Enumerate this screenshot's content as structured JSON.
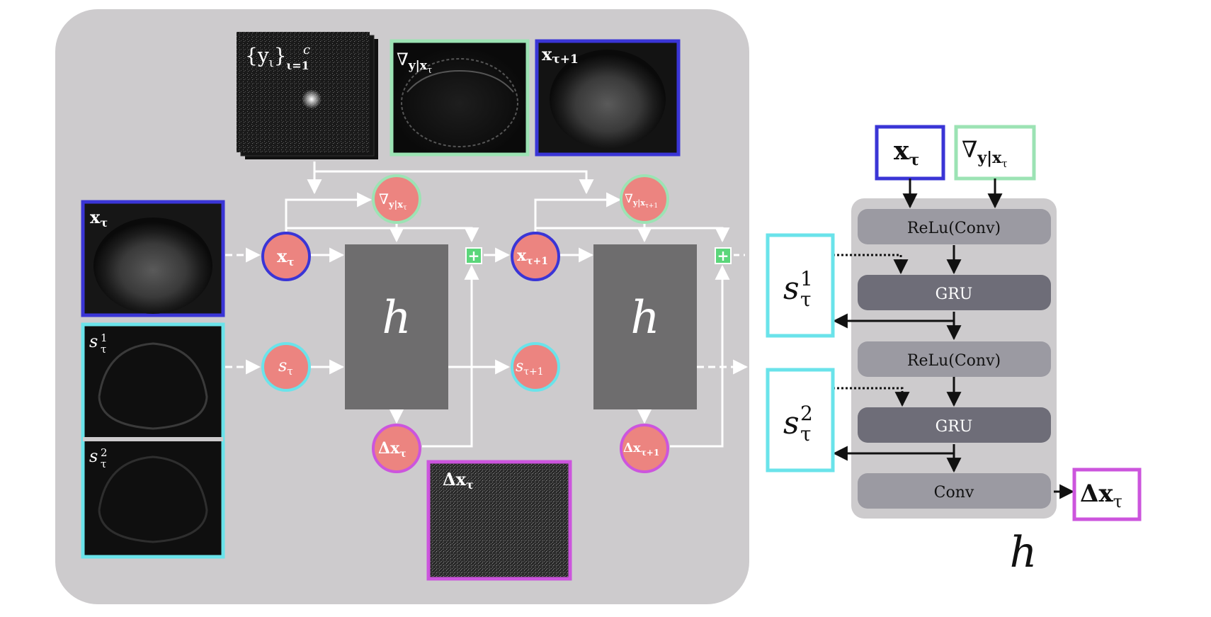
{
  "left_panel": {
    "kspace_label": "{y",
    "kspace_sub": "ι",
    "kspace_close": "}",
    "kspace_sub2": "ι=1",
    "kspace_sup": "c",
    "grad_label": "∇",
    "grad_sub": "y|x",
    "grad_subsub": "τ",
    "xnext_label": "x",
    "xnext_sub": "τ+1",
    "x_label": "x",
    "x_sub": "τ",
    "s1_label": "s",
    "s1_sup": "1",
    "s1_sub": "τ",
    "s2_label": "s",
    "s2_sup": "2",
    "s2_sub": "τ",
    "dx_label": "Δx",
    "dx_sub": "τ",
    "h_label": "h",
    "plus": "+"
  },
  "nodes": {
    "x_tau": "x",
    "x_tau_sub": "τ",
    "s_tau": "s",
    "s_tau_sub": "τ",
    "grad_tau": "∇",
    "grad_tau_sub": "y|x",
    "grad_tau_subsub": "τ",
    "dx_tau": "Δx",
    "dx_tau_sub": "τ",
    "x_next": "x",
    "x_next_sub": "τ+1",
    "s_next": "s",
    "s_next_sub": "τ+1",
    "grad_next": "∇",
    "grad_next_sub": "y|x",
    "grad_next_subsub": "τ+1",
    "dx_next": "Δx",
    "dx_next_sub": "τ+1"
  },
  "right_panel": {
    "input_x": "x",
    "input_x_sub": "τ",
    "input_grad": "∇",
    "input_grad_sub": "y|x",
    "input_grad_subsub": "τ",
    "layer1": "ReLu(Conv)",
    "layer2": "GRU",
    "layer3": "ReLu(Conv)",
    "layer4": "GRU",
    "layer5": "Conv",
    "state1": "s",
    "state1_sup": "1",
    "state1_sub": "τ",
    "state2": "s",
    "state2_sup": "2",
    "state2_sub": "τ",
    "output": "Δx",
    "output_sub": "τ",
    "h_caption": "h"
  },
  "colors": {
    "panel_bg": "#cdcbcd",
    "node_fill": "#ec8480",
    "blue": "#3a35d6",
    "green": "#9ce3b4",
    "cyan": "#6ae3ea",
    "magenta": "#cc55dd",
    "h_block": "#6e6d6e",
    "layer_light": "#9b9aa2",
    "layer_dark": "#6e6d78",
    "plus_green": "#5bd67a"
  }
}
